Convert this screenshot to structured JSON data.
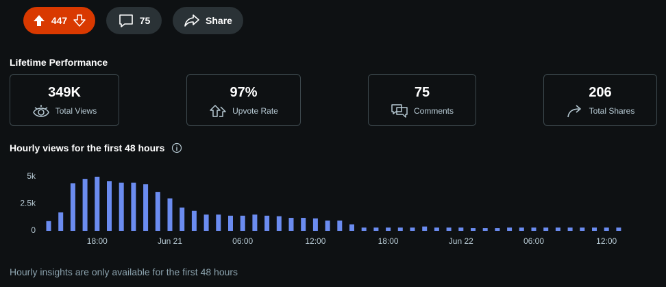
{
  "header": {
    "upvotes": "447",
    "comments": "75",
    "share": "Share"
  },
  "lifetime": {
    "title": "Lifetime Performance",
    "stats": [
      {
        "value": "349K",
        "label": "Total Views"
      },
      {
        "value": "97%",
        "label": "Upvote Rate"
      },
      {
        "value": "75",
        "label": "Comments"
      },
      {
        "value": "206",
        "label": "Total Shares"
      }
    ]
  },
  "chart_data": {
    "type": "bar",
    "title": "Hourly views for the first 48 hours",
    "color": "#6b8cf0",
    "categories": [
      null,
      null,
      null,
      null,
      "18:00",
      null,
      null,
      null,
      null,
      null,
      "Jun 21",
      null,
      null,
      null,
      null,
      null,
      "06:00",
      null,
      null,
      null,
      null,
      null,
      "12:00",
      null,
      null,
      null,
      null,
      null,
      "18:00",
      null,
      null,
      null,
      null,
      null,
      "Jun 22",
      null,
      null,
      null,
      null,
      null,
      "06:00",
      null,
      null,
      null,
      null,
      null,
      "12:00",
      null
    ],
    "values": [
      900,
      1700,
      4400,
      4800,
      5000,
      4600,
      4450,
      4450,
      4300,
      3600,
      3000,
      2150,
      1850,
      1500,
      1500,
      1400,
      1400,
      1500,
      1400,
      1350,
      1200,
      1200,
      1150,
      950,
      950,
      600,
      300,
      300,
      300,
      300,
      300,
      400,
      300,
      300,
      300,
      250,
      250,
      250,
      300,
      300,
      300,
      300,
      300,
      300,
      300,
      300,
      300,
      300
    ],
    "ylim": [
      0,
      5000
    ],
    "yticks": [
      {
        "value": 0,
        "label": "0"
      },
      {
        "value": 2500,
        "label": "2.5k"
      },
      {
        "value": 5000,
        "label": "5k"
      }
    ]
  },
  "footer": {
    "note": "Hourly insights are only available for the first 48 hours"
  }
}
